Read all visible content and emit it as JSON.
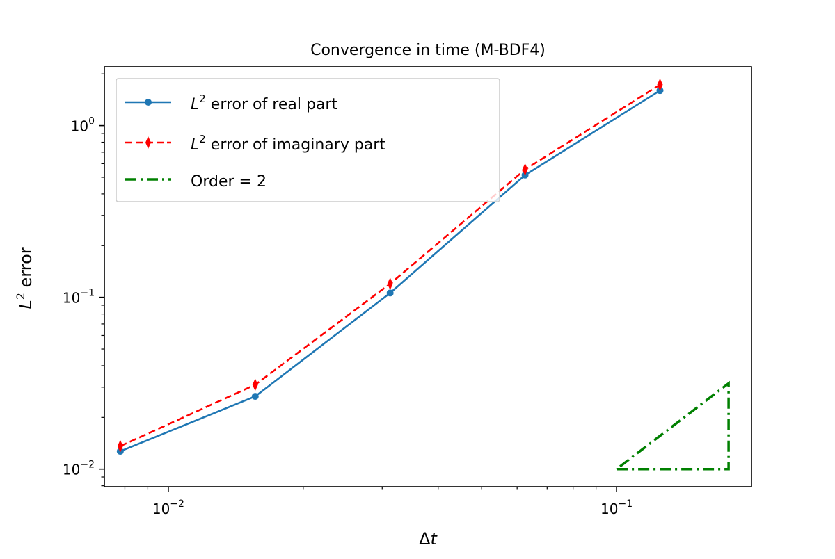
{
  "chart_data": {
    "type": "line",
    "title": "Convergence in time (M-BDF4)",
    "xlabel_symbol": "Δ",
    "xlabel_var": "t",
    "ylabel_var": "L",
    "ylabel_sup": "2",
    "ylabel_rest": " error",
    "xscale": "log",
    "yscale": "log",
    "xlim": [
      0.0072,
      0.2
    ],
    "ylim": [
      0.0079,
      2.2
    ],
    "x_ticks": [
      {
        "value": 0.01,
        "base": "10",
        "exp": "−2"
      },
      {
        "value": 0.1,
        "base": "10",
        "exp": "−1"
      }
    ],
    "y_ticks": [
      {
        "value": 0.01,
        "base": "10",
        "exp": "−2"
      },
      {
        "value": 0.1,
        "base": "10",
        "exp": "−1"
      },
      {
        "value": 1,
        "base": "10",
        "exp": "0"
      }
    ],
    "grid": false,
    "legend_position": "upper-left",
    "series": [
      {
        "name_var": "L",
        "name_sup": "2",
        "name_rest": " error of real part",
        "color": "#1f77b4",
        "linestyle": "solid",
        "marker": "circle",
        "x": [
          0.0078125,
          0.015625,
          0.03125,
          0.0625,
          0.125
        ],
        "y": [
          0.0127,
          0.0265,
          0.106,
          0.515,
          1.6
        ]
      },
      {
        "name_var": "L",
        "name_sup": "2",
        "name_rest": " error of imaginary part",
        "color": "#ff0000",
        "linestyle": "dashed",
        "marker": "thin_diamond",
        "x": [
          0.0078125,
          0.015625,
          0.03125,
          0.0625,
          0.125
        ],
        "y": [
          0.0136,
          0.031,
          0.12,
          0.555,
          1.73
        ]
      }
    ],
    "reference": {
      "name": "Order = 2",
      "color": "#008000",
      "linestyle": "dashdot",
      "points": [
        [
          0.1,
          0.01
        ],
        [
          0.1778,
          0.01
        ],
        [
          0.1778,
          0.0316
        ],
        [
          0.1,
          0.01
        ]
      ]
    }
  }
}
